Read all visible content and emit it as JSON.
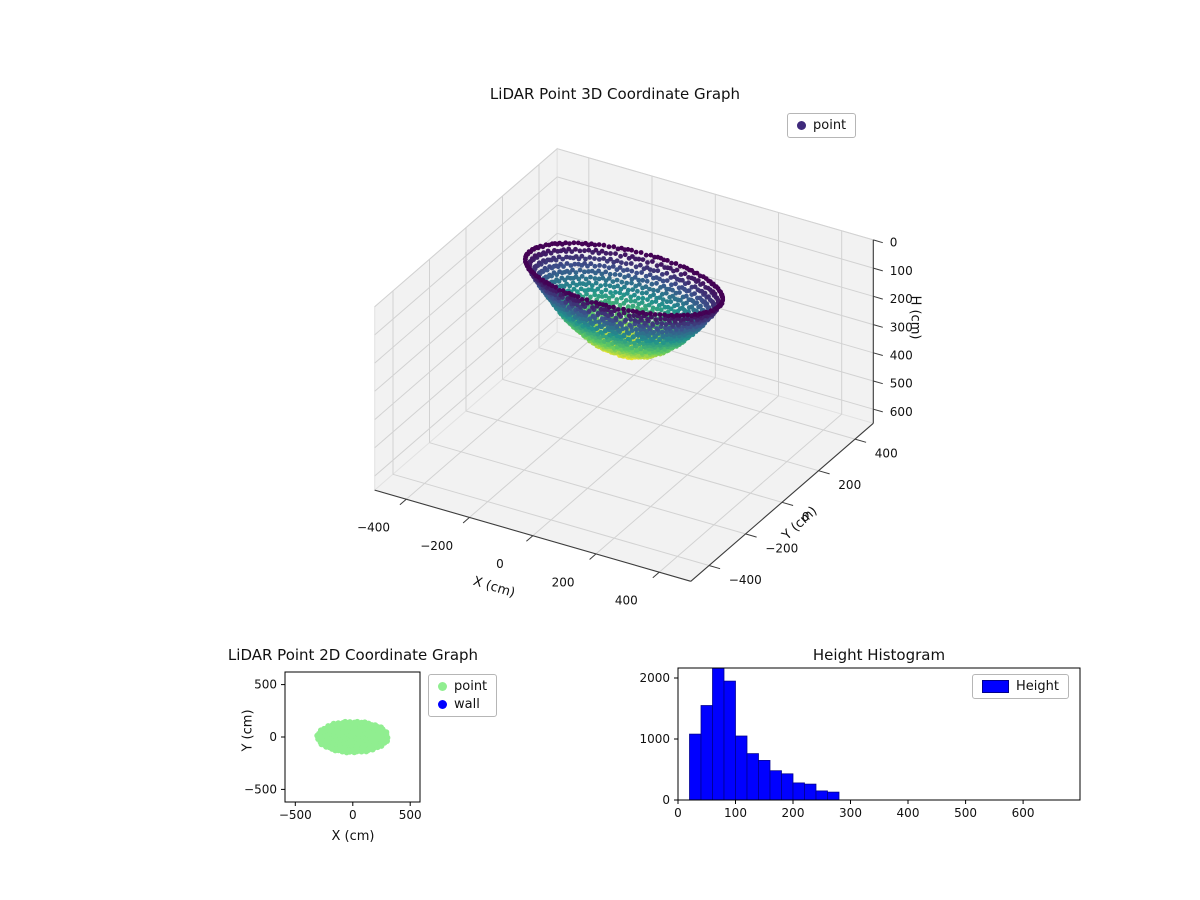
{
  "figure": {
    "background": "#ffffff"
  },
  "chart_data": [
    {
      "type": "scatter3d",
      "title": "LiDAR Point 3D Coordinate Graph",
      "xlabel": "X (cm)",
      "ylabel": "Y (cm)",
      "zlabel": "H (cm)",
      "xlim": [
        -500,
        500
      ],
      "ylim": [
        -500,
        500
      ],
      "zlim": [
        0,
        650
      ],
      "z_axis_inverted": true,
      "xticks": [
        -400,
        -200,
        0,
        200,
        400
      ],
      "yticks": [
        -400,
        -200,
        0,
        200,
        400
      ],
      "zticks": [
        0,
        100,
        200,
        300,
        400,
        500,
        600
      ],
      "grid": true,
      "legend": [
        {
          "label": "point",
          "color": "#3f2a7b",
          "marker": "dot"
        }
      ],
      "points": {
        "shape": "bowl",
        "center_x": 0,
        "center_y": 0,
        "radius_x": 300,
        "radius_y": 150,
        "h_rim": 20,
        "h_bottom": 280,
        "colormap": "viridis",
        "color_by": "H"
      }
    },
    {
      "type": "scatter",
      "title": "LiDAR Point 2D Coordinate Graph",
      "xlabel": "X (cm)",
      "ylabel": "Y (cm)",
      "xlim": [
        -590,
        585
      ],
      "ylim": [
        -620,
        620
      ],
      "xticks": [
        -500,
        0,
        500
      ],
      "yticks": [
        -500,
        0,
        500
      ],
      "legend": [
        {
          "label": "point",
          "color": "#90ee90",
          "marker": "dot"
        },
        {
          "label": "wall",
          "color": "#0000ff",
          "marker": "dot"
        }
      ],
      "points": {
        "shape": "ellipse-cluster",
        "center_x": 0,
        "center_y": 0,
        "radius_x": 310,
        "radius_y": 150,
        "color": "#90ee90"
      }
    },
    {
      "type": "bar",
      "title": "Height Histogram",
      "xlabel": "",
      "ylabel": "",
      "xlim": [
        0,
        699
      ],
      "ylim": [
        0,
        2164
      ],
      "xticks": [
        0,
        100,
        200,
        300,
        400,
        500,
        600
      ],
      "yticks": [
        0,
        1000,
        2000
      ],
      "bin_start": 20,
      "bin_width": 20,
      "values": [
        1080,
        1550,
        2160,
        1950,
        1050,
        760,
        650,
        480,
        430,
        280,
        260,
        150,
        130
      ],
      "bar_color": "#0000ff",
      "bar_edge_color": "#00008b",
      "legend": [
        {
          "label": "Height",
          "color": "#0000ff",
          "marker": "patch"
        }
      ]
    }
  ]
}
